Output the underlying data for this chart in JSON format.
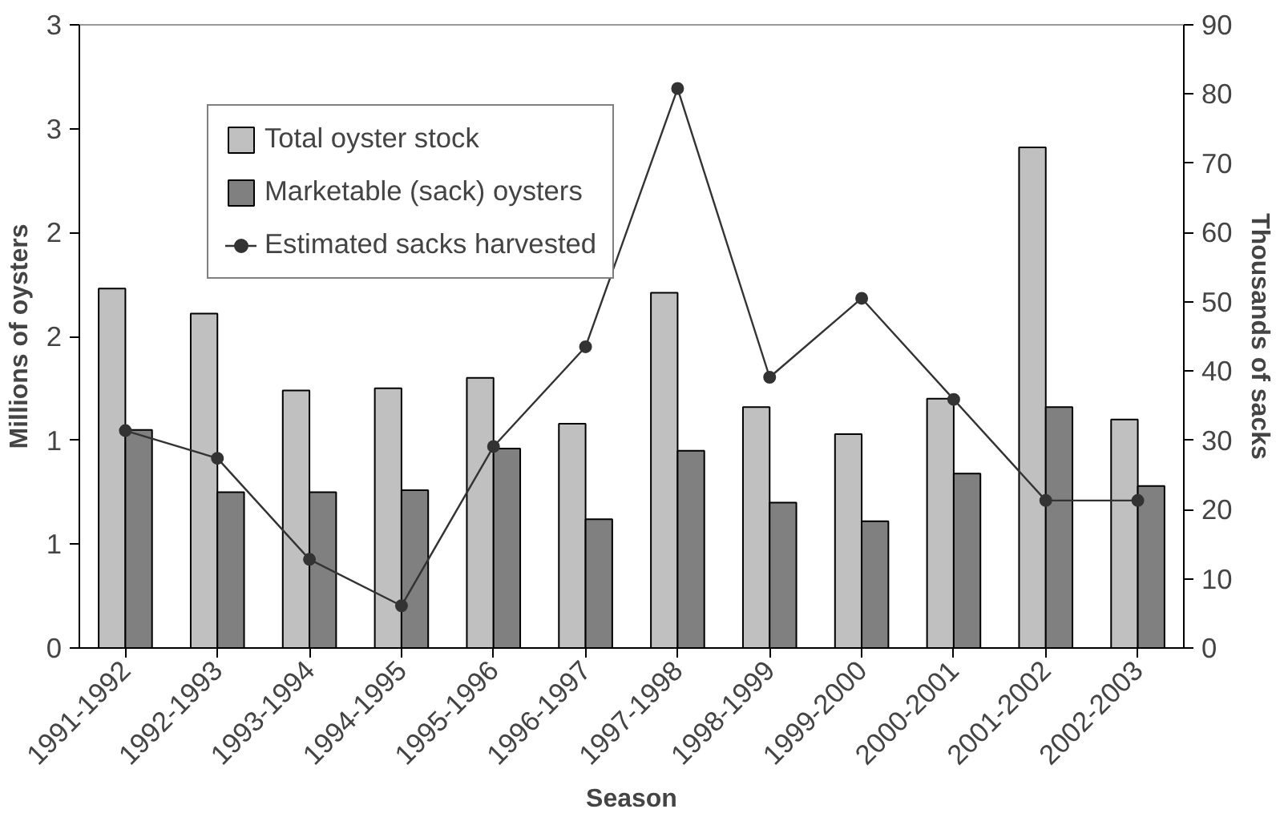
{
  "chart_data": {
    "type": "bar",
    "xlabel": "Season",
    "ylabel": "Millions of oysters",
    "y2label": "Thousands of sacks",
    "categories": [
      "1991-1992",
      "1992-1993",
      "1993-1994",
      "1994-1995",
      "1995-1996",
      "1996-1997",
      "1997-1998",
      "1998-1999",
      "1999-2000",
      "2000-2001",
      "2001-2002",
      "2002-2003"
    ],
    "series": [
      {
        "name": "Total oyster stock",
        "color": "#c0c0c0",
        "values": [
          1.73,
          1.61,
          1.24,
          1.25,
          1.3,
          1.08,
          1.71,
          1.16,
          1.03,
          1.2,
          2.41,
          1.1
        ]
      },
      {
        "name": "Marketable (sack) oysters",
        "color": "#808080",
        "values": [
          1.05,
          0.75,
          0.75,
          0.76,
          0.96,
          0.62,
          0.95,
          0.7,
          0.61,
          0.84,
          1.16,
          0.78
        ]
      },
      {
        "name": "Estimated sacks harvested",
        "type": "line",
        "axis": "y2",
        "color": "#333333",
        "marker": "circle",
        "values": [
          31.4,
          27.4,
          12.8,
          6.1,
          29.1,
          43.5,
          80.8,
          39.1,
          50.5,
          35.9,
          21.3,
          21.3
        ]
      }
    ],
    "ylim": [
      0,
      3
    ],
    "yticks": [
      0,
      {
        "value": 0.5,
        "label": "1"
      },
      1,
      {
        "value": 1.5,
        "label": "2"
      },
      2,
      {
        "value": 2.5,
        "label": "3"
      },
      3
    ],
    "y2lim": [
      0,
      90
    ],
    "y2ticks": [
      0,
      10,
      20,
      30,
      40,
      50,
      60,
      70,
      80,
      90
    ],
    "grid": false,
    "legend": "top left"
  }
}
